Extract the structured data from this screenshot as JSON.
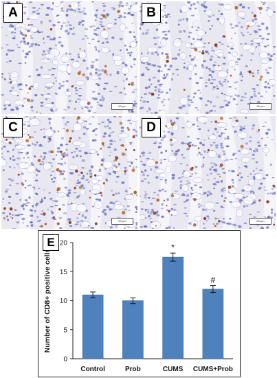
{
  "panels": [
    {
      "label": "A",
      "scale_text": "50 μm",
      "stain_density": 0.35
    },
    {
      "label": "B",
      "scale_text": "50 μm",
      "stain_density": 0.25
    },
    {
      "label": "C",
      "scale_text": "50 μm",
      "stain_density": 0.85
    },
    {
      "label": "D",
      "scale_text": "50 μm",
      "stain_density": 0.55
    }
  ],
  "chart_label": "E",
  "colors": {
    "bar": "#4f81bd",
    "bar_edge": "#3a6aa0",
    "tissue": "#e9e8f1",
    "nuclei": "#5b62b8",
    "stain": "#8b3a1a"
  },
  "chart_data": {
    "type": "bar",
    "categories": [
      "Control",
      "Prob",
      "CUMS",
      "CUMS+Prob"
    ],
    "values": [
      11,
      10,
      17.5,
      12
    ],
    "errors": [
      0.5,
      0.5,
      0.7,
      0.6
    ],
    "annotations": [
      "",
      "",
      "*",
      "#"
    ],
    "title": "",
    "xlabel": "",
    "ylabel": "Number of CD8+ positive cells",
    "ylim": [
      0,
      20
    ],
    "yticks": [
      "0",
      "5",
      "10",
      "15",
      "20"
    ],
    "grid": false
  }
}
